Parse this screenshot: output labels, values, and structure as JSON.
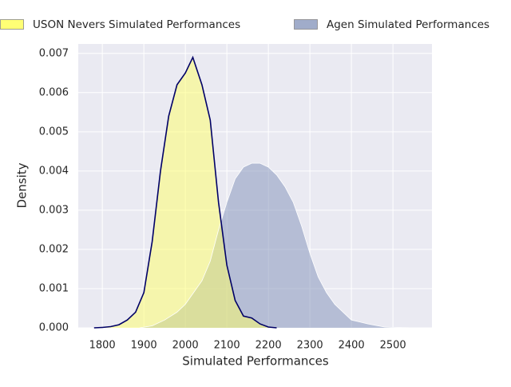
{
  "chart_data": {
    "type": "kde",
    "xlabel": "Simulated Performances",
    "ylabel": "Density",
    "xlim": [
      1742,
      2594
    ],
    "ylim": [
      0,
      0.00724
    ],
    "xticks": [
      1800,
      1900,
      2000,
      2100,
      2200,
      2300,
      2400,
      2500
    ],
    "yticks": [
      {
        "value": 0,
        "label": "0.000"
      },
      {
        "value": 0.001,
        "label": "0.001"
      },
      {
        "value": 0.002,
        "label": "0.002"
      },
      {
        "value": 0.003,
        "label": "0.003"
      },
      {
        "value": 0.004,
        "label": "0.004"
      },
      {
        "value": 0.005,
        "label": "0.005"
      },
      {
        "value": 0.006,
        "label": "0.006"
      },
      {
        "value": 0.007,
        "label": "0.007"
      }
    ],
    "grid": true,
    "legend": "top",
    "series": [
      {
        "name": "USON Nevers Simulated Performances",
        "color": "#ffff66",
        "edgecolor": "#000066",
        "alpha": 0.5,
        "x": [
          1780,
          1800,
          1820,
          1840,
          1860,
          1880,
          1900,
          1920,
          1940,
          1960,
          1980,
          2000,
          2018,
          2040,
          2060,
          2080,
          2100,
          2120,
          2140,
          2160,
          2180,
          2200,
          2220
        ],
        "values": [
          0,
          1e-05,
          3e-05,
          8e-05,
          0.0002,
          0.0004,
          0.0009,
          0.0022,
          0.004,
          0.0054,
          0.0062,
          0.0065,
          0.0069,
          0.0062,
          0.0053,
          0.0032,
          0.0016,
          0.0007,
          0.0003,
          0.00025,
          0.0001,
          2e-05,
          0
        ]
      },
      {
        "name": "Agen Simulated Performances",
        "color": "#8090b8",
        "edgecolor": "#ffffff",
        "alpha": 0.5,
        "x": [
          1890,
          1920,
          1950,
          1980,
          2000,
          2020,
          2040,
          2060,
          2080,
          2100,
          2120,
          2140,
          2160,
          2180,
          2200,
          2220,
          2240,
          2260,
          2280,
          2300,
          2320,
          2340,
          2360,
          2380,
          2400,
          2420,
          2440,
          2460,
          2480,
          2500,
          2550
        ],
        "values": [
          0,
          5e-05,
          0.0002,
          0.0004,
          0.0006,
          0.0009,
          0.0012,
          0.0017,
          0.0025,
          0.0032,
          0.0038,
          0.0041,
          0.0042,
          0.0042,
          0.0041,
          0.0039,
          0.0036,
          0.0032,
          0.0026,
          0.0019,
          0.0013,
          0.0009,
          0.0006,
          0.0004,
          0.0002,
          0.00015,
          0.0001,
          6e-05,
          2e-05,
          1e-05,
          0
        ]
      }
    ]
  }
}
